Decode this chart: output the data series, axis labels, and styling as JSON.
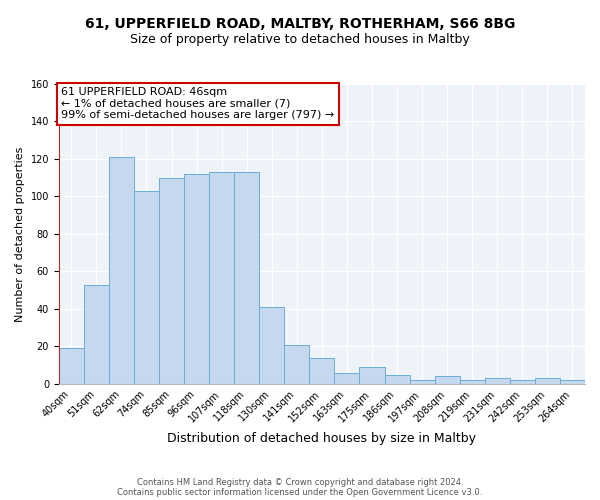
{
  "title1": "61, UPPERFIELD ROAD, MALTBY, ROTHERHAM, S66 8BG",
  "title2": "Size of property relative to detached houses in Maltby",
  "xlabel": "Distribution of detached houses by size in Maltby",
  "ylabel": "Number of detached properties",
  "categories": [
    "40sqm",
    "51sqm",
    "62sqm",
    "74sqm",
    "85sqm",
    "96sqm",
    "107sqm",
    "118sqm",
    "130sqm",
    "141sqm",
    "152sqm",
    "163sqm",
    "175sqm",
    "186sqm",
    "197sqm",
    "208sqm",
    "219sqm",
    "231sqm",
    "242sqm",
    "253sqm",
    "264sqm"
  ],
  "values": [
    19,
    53,
    121,
    103,
    110,
    112,
    113,
    113,
    41,
    21,
    14,
    6,
    9,
    5,
    2,
    4,
    2,
    3,
    2,
    3,
    2
  ],
  "bar_color": "#c5d8ed",
  "bar_edge_color": "#6aaed6",
  "annotation_line1": "61 UPPERFIELD ROAD: 46sqm",
  "annotation_line2": "← 1% of detached houses are smaller (7)",
  "annotation_line3": "99% of semi-detached houses are larger (797) →",
  "annotation_box_color": "#ffffff",
  "annotation_box_edge": "#cc0000",
  "ref_line_color": "#cc0000",
  "ylim": [
    0,
    160
  ],
  "yticks": [
    0,
    20,
    40,
    60,
    80,
    100,
    120,
    140,
    160
  ],
  "footer1": "Contains HM Land Registry data © Crown copyright and database right 2024.",
  "footer2": "Contains public sector information licensed under the Open Government Licence v3.0.",
  "plot_bg_color": "#eef2f9",
  "fig_bg_color": "#ffffff",
  "title_fontsize": 10,
  "subtitle_fontsize": 9,
  "annotation_fontsize": 8,
  "ylabel_fontsize": 8,
  "xlabel_fontsize": 9,
  "tick_fontsize": 7,
  "footer_fontsize": 6
}
